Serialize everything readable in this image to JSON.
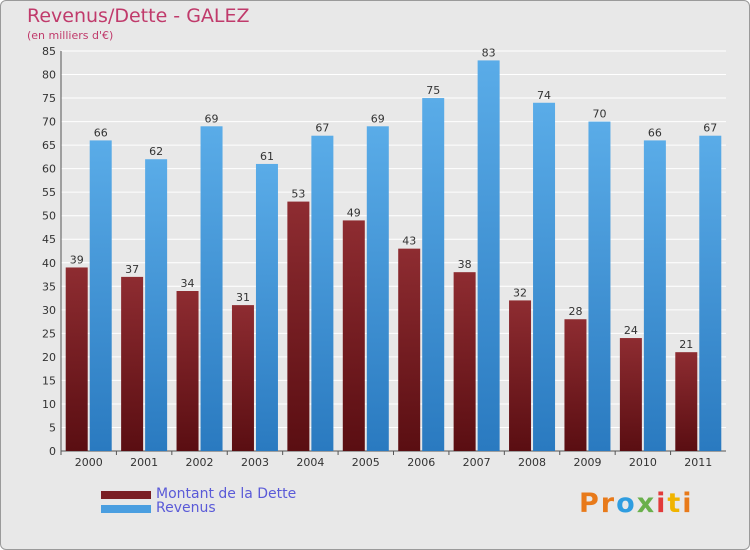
{
  "header": {
    "title": "Revenus/Dette - GALEZ",
    "subtitle": "(en milliers d'€)"
  },
  "colors": {
    "dette": "#7a1f24",
    "revenus": "#4a9ee0",
    "title": "#c03a6b",
    "legend_text": "#5a5ad8"
  },
  "chart_data": {
    "type": "bar",
    "title": "Revenus/Dette - GALEZ",
    "subtitle": "(en milliers d'€)",
    "xlabel": "",
    "ylabel": "",
    "categories": [
      "2000",
      "2001",
      "2002",
      "2003",
      "2004",
      "2005",
      "2006",
      "2007",
      "2008",
      "2009",
      "2010",
      "2011"
    ],
    "series": [
      {
        "name": "Montant de la Dette",
        "values": [
          39,
          37,
          34,
          31,
          53,
          49,
          43,
          38,
          32,
          28,
          24,
          21
        ]
      },
      {
        "name": "Revenus",
        "values": [
          66,
          62,
          69,
          61,
          67,
          69,
          75,
          83,
          74,
          70,
          66,
          67
        ]
      }
    ],
    "ylim": [
      0,
      85
    ],
    "yticks": [
      0,
      5,
      10,
      15,
      20,
      25,
      30,
      35,
      40,
      45,
      50,
      55,
      60,
      65,
      70,
      75,
      80,
      85
    ],
    "grid": true,
    "legend_position": "bottom-left"
  },
  "legend": {
    "items": [
      {
        "label": "Montant de la Dette",
        "color": "#7a1f24"
      },
      {
        "label": "Revenus",
        "color": "#4a9ee0"
      }
    ]
  },
  "logo": {
    "letters": [
      "P",
      "r",
      "o",
      "x",
      "i",
      "t",
      "i"
    ],
    "colors": [
      "#e87a1a",
      "#e87a1a",
      "#2f9de0",
      "#6ab04c",
      "#e23a3a",
      "#f0b400",
      "#e87a1a"
    ]
  }
}
